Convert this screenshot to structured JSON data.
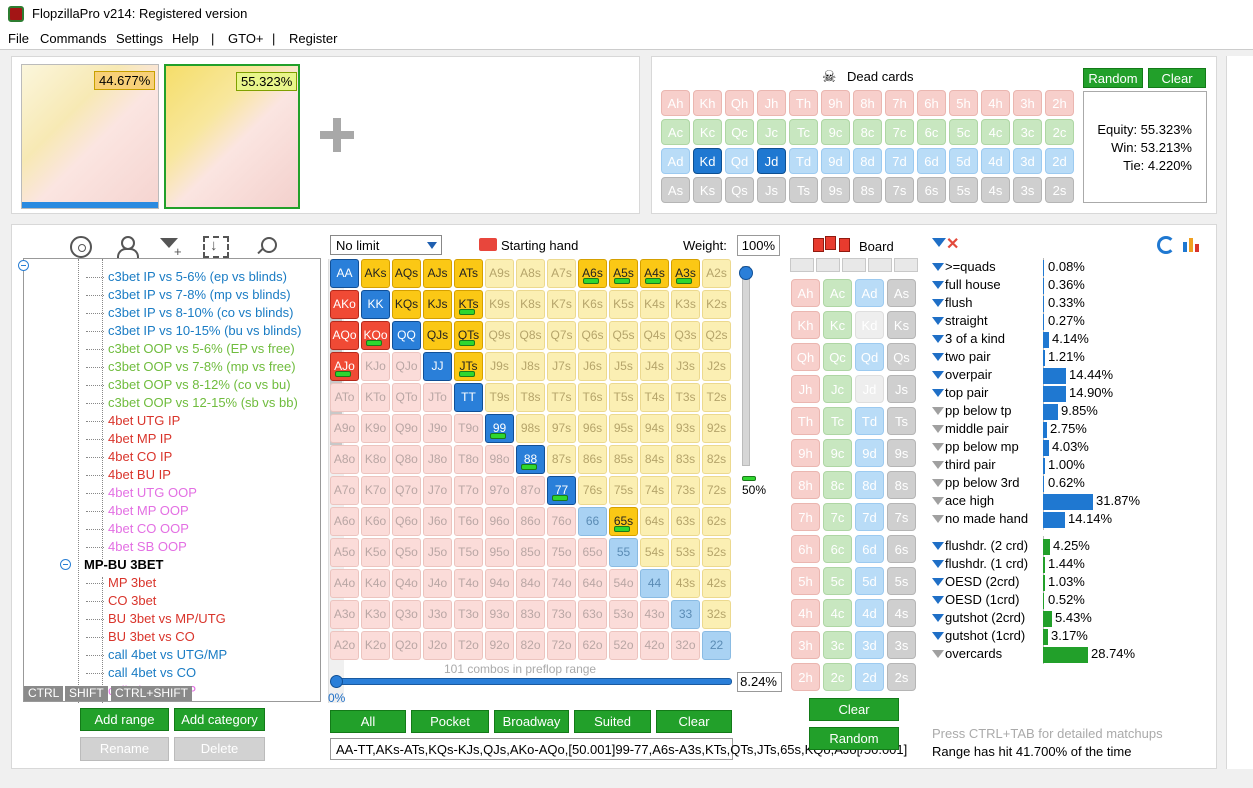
{
  "window": {
    "title": "FlopzillaPro v214: Registered version"
  },
  "menu": [
    "File",
    "Commands",
    "Settings",
    "Help",
    "|",
    "GTO+",
    "|",
    "Register"
  ],
  "ranges": [
    {
      "equity": "44.677%"
    },
    {
      "equity": "55.323%"
    }
  ],
  "dead_cards": {
    "title": "Dead cards",
    "random_label": "Random",
    "clear_label": "Clear",
    "ranks": [
      "A",
      "K",
      "Q",
      "J",
      "T",
      "9",
      "8",
      "7",
      "6",
      "5",
      "4",
      "3",
      "2"
    ],
    "suits": [
      "h",
      "c",
      "d",
      "s"
    ],
    "selected": [
      "Kd",
      "Jd"
    ]
  },
  "equity": {
    "equity": "Equity: 55.323%",
    "win": "Win: 53.213%",
    "tie": "Tie: 4.220%"
  },
  "tree": {
    "items": [
      {
        "label": "c3bet IP vs 5-6% (ep vs blinds)",
        "color": "blue"
      },
      {
        "label": "c3bet IP vs 7-8% (mp vs blinds)",
        "color": "blue"
      },
      {
        "label": "c3bet IP vs 8-10% (co vs blinds)",
        "color": "blue"
      },
      {
        "label": "c3bet IP vs 10-15% (bu vs blinds)",
        "color": "blue"
      },
      {
        "label": "c3bet OOP vs 5-6% (EP vs free)",
        "color": "green"
      },
      {
        "label": "c3bet OOP vs 7-8% (mp vs free)",
        "color": "green"
      },
      {
        "label": "c3bet OOP vs 8-12% (co vs bu)",
        "color": "green"
      },
      {
        "label": "c3bet OOP vs 12-15% (sb vs bb)",
        "color": "green"
      },
      {
        "label": "4bet UTG IP",
        "color": "red"
      },
      {
        "label": "4bet MP IP",
        "color": "red"
      },
      {
        "label": "4bet CO IP",
        "color": "red"
      },
      {
        "label": "4bet BU IP",
        "color": "red"
      },
      {
        "label": "4bet UTG OOP",
        "color": "pink"
      },
      {
        "label": "4bet MP OOP",
        "color": "pink"
      },
      {
        "label": "4bet CO OOP",
        "color": "pink"
      },
      {
        "label": "4bet SB OOP",
        "color": "pink"
      }
    ],
    "group": "MP-BU 3BET",
    "group_items": [
      {
        "label": "MP 3bet",
        "color": "red"
      },
      {
        "label": "CO 3bet",
        "color": "red"
      },
      {
        "label": "BU 3bet vs MP/UTG",
        "color": "red"
      },
      {
        "label": "BU 3bet vs CO",
        "color": "red"
      },
      {
        "label": "call 4bet vs UTG/MP",
        "color": "blue"
      },
      {
        "label": "call 4bet vs CO",
        "color": "blue"
      },
      {
        "label": "call 4bet vs MP",
        "color": "pink"
      }
    ]
  },
  "keys": [
    "CTRL",
    "SHIFT",
    "CTRL+SHIFT"
  ],
  "tree_buttons": {
    "add_range": "Add range",
    "add_category": "Add category",
    "rename": "Rename",
    "delete": "Delete"
  },
  "grid_controls": {
    "limit": "No limit",
    "starting_hand": "Starting hand",
    "weight_label": "Weight:",
    "weight_value": "100%",
    "weight_slider_pct": "50%",
    "combos": "101 combos in preflop range",
    "range_slider_pct": "0%",
    "range_pct": "8.24%"
  },
  "grid_states": {
    "AA": "blue",
    "KK": "blue",
    "QQ": "blue",
    "JJ": "blue",
    "TT": "blue",
    "99": "blue-p",
    "88": "blue-p",
    "77": "blue-p",
    "66": "lightblue",
    "55": "lightblue",
    "44": "lightblue",
    "33": "lightblue",
    "22": "lightblue",
    "AKs": "yellow",
    "AQs": "yellow",
    "AJs": "yellow",
    "ATs": "yellow",
    "KQs": "yellow",
    "KJs": "yellow",
    "KTs": "yellow-p",
    "QJs": "yellow",
    "QTs": "yellow-p",
    "JTs": "yellow-p",
    "A6s": "yellow-p",
    "A5s": "yellow-p",
    "A4s": "yellow-p",
    "A3s": "yellow-p",
    "65s": "yellow-p",
    "AKo": "red",
    "AQo": "red",
    "KQo": "red-p",
    "AJo": "red-p"
  },
  "grid_buttons": [
    "All",
    "Pocket",
    "Broadway",
    "Suited",
    "Clear"
  ],
  "range_text": "AA-TT,AKs-ATs,KQs-KJs,QJs,AKo-AQo,[50.001]99-77,A6s-A3s,KTs,QTs,JTs,65s,KQo,AJo[/50.001]",
  "board": {
    "title": "Board",
    "clear_label": "Clear",
    "random_label": "Random",
    "suits": [
      "h",
      "c",
      "d",
      "s"
    ],
    "ranks": [
      "A",
      "K",
      "Q",
      "J",
      "T",
      "9",
      "8",
      "7",
      "6",
      "5",
      "4",
      "3",
      "2"
    ],
    "used": [
      "Kd",
      "Jd"
    ]
  },
  "stats": {
    "made": [
      {
        "label": ">=quads",
        "value": "0.08%",
        "pct": 0.08,
        "active": true
      },
      {
        "label": "full house",
        "value": "0.36%",
        "pct": 0.36,
        "active": true
      },
      {
        "label": "flush",
        "value": "0.33%",
        "pct": 0.33,
        "active": true
      },
      {
        "label": "straight",
        "value": "0.27%",
        "pct": 0.27,
        "active": true
      },
      {
        "label": "3 of a kind",
        "value": "4.14%",
        "pct": 4.14,
        "active": true
      },
      {
        "label": "two pair",
        "value": "1.21%",
        "pct": 1.21,
        "active": true
      },
      {
        "label": "overpair",
        "value": "14.44%",
        "pct": 14.44,
        "active": true
      },
      {
        "label": "top pair",
        "value": "14.90%",
        "pct": 14.9,
        "active": true
      },
      {
        "label": "pp below tp",
        "value": "9.85%",
        "pct": 9.85,
        "active": false
      },
      {
        "label": "middle pair",
        "value": "2.75%",
        "pct": 2.75,
        "active": false
      },
      {
        "label": "pp below mp",
        "value": "4.03%",
        "pct": 4.03,
        "active": false
      },
      {
        "label": "third pair",
        "value": "1.00%",
        "pct": 1.0,
        "active": false
      },
      {
        "label": "pp below 3rd",
        "value": "0.62%",
        "pct": 0.62,
        "active": false
      },
      {
        "label": "ace high",
        "value": "31.87%",
        "pct": 31.87,
        "active": false
      },
      {
        "label": "no made hand",
        "value": "14.14%",
        "pct": 14.14,
        "active": false
      }
    ],
    "draws": [
      {
        "label": "flushdr. (2 crd)",
        "value": "4.25%",
        "pct": 4.25,
        "active": true
      },
      {
        "label": "flushdr. (1 crd)",
        "value": "1.44%",
        "pct": 1.44,
        "active": true
      },
      {
        "label": "OESD (2crd)",
        "value": "1.03%",
        "pct": 1.03,
        "active": true
      },
      {
        "label": "OESD (1crd)",
        "value": "0.52%",
        "pct": 0.52,
        "active": true
      },
      {
        "label": "gutshot (2crd)",
        "value": "5.43%",
        "pct": 5.43,
        "active": true
      },
      {
        "label": "gutshot (1crd)",
        "value": "3.17%",
        "pct": 3.17,
        "active": true
      },
      {
        "label": "overcards",
        "value": "28.74%",
        "pct": 28.74,
        "active": false
      }
    ],
    "colors": {
      "made": "#1f78d1",
      "draw": "#22a02a"
    },
    "hint": "Press CTRL+TAB for detailed matchups",
    "hit": "Range has hit 41.700% of the time"
  }
}
